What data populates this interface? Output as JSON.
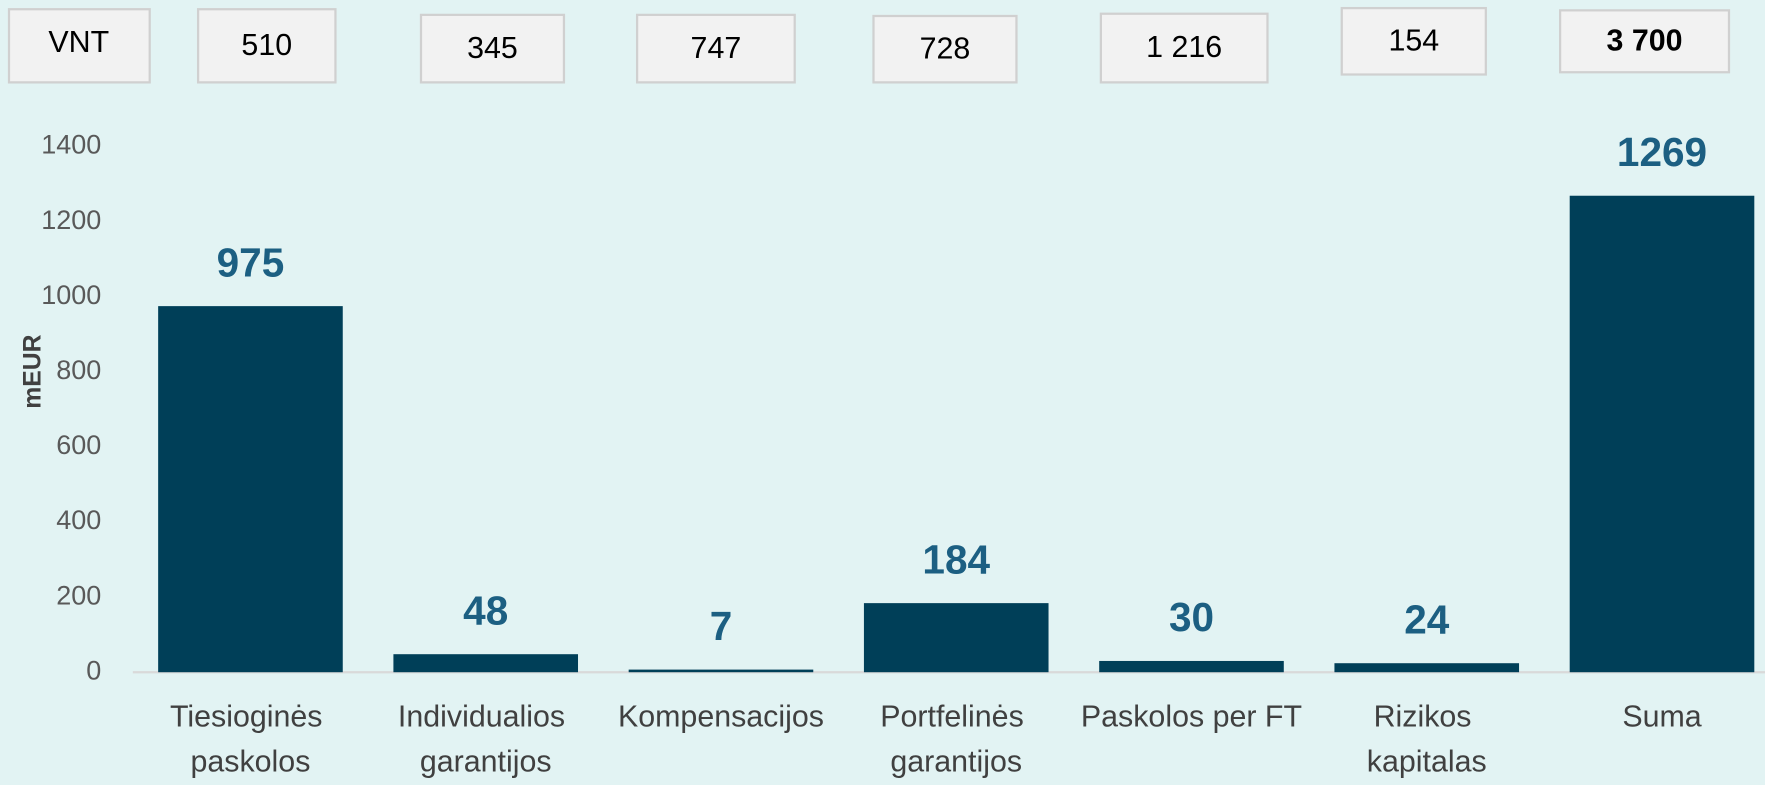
{
  "chart_data": {
    "type": "bar",
    "count_header": "VNT",
    "counts": [
      510,
      345,
      747,
      728,
      {
        "value": 1216,
        "label": "1 216"
      },
      154,
      {
        "value": 3700,
        "label": "3 700"
      }
    ],
    "ylabel": "mEUR",
    "categories": [
      "Tiesioginės paskolos",
      "Individualios garantijos",
      "Kompensacijos",
      "Portfelinės garantijos",
      "Paskolos per FT",
      "Rizikos kapitalas",
      "Suma"
    ],
    "values": [
      975,
      48,
      7,
      184,
      30,
      24,
      1269
    ],
    "color": "#003f58",
    "ylim": [
      0,
      1400
    ],
    "yticks": [
      0,
      200,
      400,
      600,
      800,
      1000,
      1200,
      1400
    ],
    "grid": false
  }
}
